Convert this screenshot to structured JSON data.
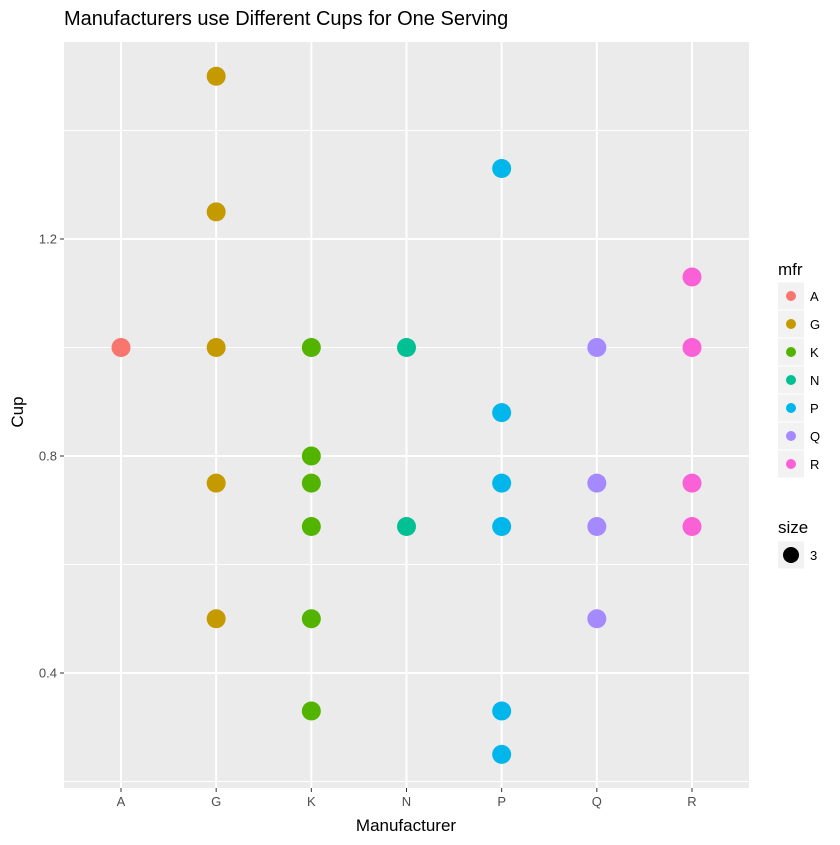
{
  "chart_data": {
    "type": "scatter",
    "title": "Manufacturers use Different Cups for One Serving",
    "xlabel": "Manufacturer",
    "ylabel": "Cup",
    "categories": [
      "A",
      "G",
      "K",
      "N",
      "P",
      "Q",
      "R"
    ],
    "ylim": [
      0.2,
      1.51
    ],
    "yticks": [
      0.4,
      0.8,
      1.2
    ],
    "ytick_labels": [
      "0.4",
      "0.8",
      "1.2"
    ],
    "grid": true,
    "point_size": 3,
    "series": [
      {
        "name": "A",
        "color": "#F8766D",
        "points": [
          {
            "x": "A",
            "y": 1.0
          }
        ]
      },
      {
        "name": "G",
        "color": "#C49A00",
        "points": [
          {
            "x": "G",
            "y": 1.5
          },
          {
            "x": "G",
            "y": 1.25
          },
          {
            "x": "G",
            "y": 1.0
          },
          {
            "x": "G",
            "y": 0.75
          },
          {
            "x": "G",
            "y": 0.5
          }
        ]
      },
      {
        "name": "K",
        "color": "#53B400",
        "points": [
          {
            "x": "K",
            "y": 1.0
          },
          {
            "x": "K",
            "y": 0.8
          },
          {
            "x": "K",
            "y": 0.75
          },
          {
            "x": "K",
            "y": 0.67
          },
          {
            "x": "K",
            "y": 0.5
          },
          {
            "x": "K",
            "y": 0.33
          }
        ]
      },
      {
        "name": "N",
        "color": "#00C094",
        "points": [
          {
            "x": "N",
            "y": 1.0
          },
          {
            "x": "N",
            "y": 0.67
          }
        ]
      },
      {
        "name": "P",
        "color": "#00B6EB",
        "points": [
          {
            "x": "P",
            "y": 1.33
          },
          {
            "x": "P",
            "y": 0.88
          },
          {
            "x": "P",
            "y": 0.75
          },
          {
            "x": "P",
            "y": 0.67
          },
          {
            "x": "P",
            "y": 0.33
          },
          {
            "x": "P",
            "y": 0.25
          }
        ]
      },
      {
        "name": "Q",
        "color": "#A58AFF",
        "points": [
          {
            "x": "Q",
            "y": 1.0
          },
          {
            "x": "Q",
            "y": 0.75
          },
          {
            "x": "Q",
            "y": 0.67
          },
          {
            "x": "Q",
            "y": 0.5
          }
        ]
      },
      {
        "name": "R",
        "color": "#FB61D7",
        "points": [
          {
            "x": "R",
            "y": 1.13
          },
          {
            "x": "R",
            "y": 1.0
          },
          {
            "x": "R",
            "y": 0.75
          },
          {
            "x": "R",
            "y": 0.67
          }
        ]
      }
    ],
    "legend": {
      "color_title": "mfr",
      "color_entries": [
        "A",
        "G",
        "K",
        "N",
        "P",
        "Q",
        "R"
      ],
      "size_title": "size",
      "size_entries": [
        "3"
      ],
      "placement": "right"
    },
    "colors": {
      "panel_background": "#EBEBEB",
      "grid_major": "#FFFFFF",
      "axis_text": "#4D4D4D",
      "legend_key_background": "#F2F2F2",
      "size_key_point": "#000000"
    }
  }
}
